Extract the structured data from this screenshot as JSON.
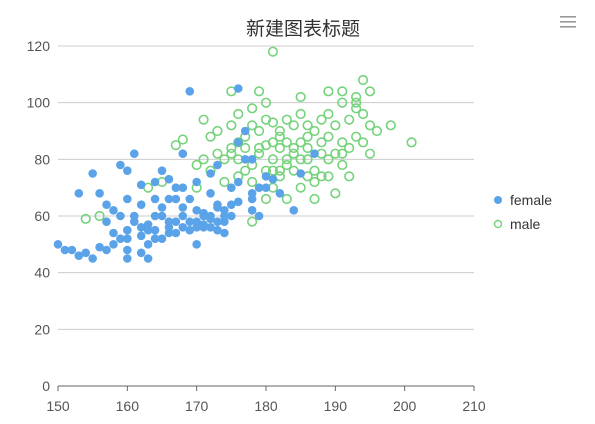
{
  "colors": {
    "female": "#5ba3e8",
    "male": "#76d37c",
    "grid": "#cccccc",
    "axis": "#666666",
    "menu_icon": "#999999"
  },
  "toolbar": {
    "menu_icon": "hamburger-menu-icon"
  },
  "chart_data": {
    "type": "scatter",
    "title": "新建图表标题",
    "xlabel": "",
    "ylabel": "",
    "xlim": [
      150,
      210
    ],
    "ylim": [
      0,
      120
    ],
    "x_ticks": [
      150,
      160,
      170,
      180,
      190,
      200,
      210
    ],
    "y_ticks": [
      0,
      20,
      40,
      60,
      80,
      100,
      120
    ],
    "grid": "horizontal",
    "legend_position": "right",
    "series": [
      {
        "name": "female",
        "marker": "filled-circle",
        "points": [
          [
            150,
            50
          ],
          [
            151,
            48
          ],
          [
            152,
            48
          ],
          [
            153,
            46
          ],
          [
            154,
            47
          ],
          [
            155,
            45
          ],
          [
            156,
            49
          ],
          [
            157,
            48
          ],
          [
            153,
            68
          ],
          [
            155,
            75
          ],
          [
            156,
            68
          ],
          [
            157,
            58
          ],
          [
            158,
            62
          ],
          [
            159,
            78
          ],
          [
            160,
            76
          ],
          [
            160,
            55
          ],
          [
            159,
            52
          ],
          [
            160,
            48
          ],
          [
            161,
            58
          ],
          [
            161,
            82
          ],
          [
            162,
            71
          ],
          [
            162,
            47
          ],
          [
            163,
            55
          ],
          [
            163,
            45
          ],
          [
            164,
            52
          ],
          [
            164,
            66
          ],
          [
            165,
            60
          ],
          [
            165,
            76
          ],
          [
            166,
            56
          ],
          [
            166,
            73
          ],
          [
            167,
            70
          ],
          [
            167,
            58
          ],
          [
            168,
            82
          ],
          [
            168,
            60
          ],
          [
            169,
            104
          ],
          [
            169,
            66
          ],
          [
            170,
            72
          ],
          [
            170,
            62
          ],
          [
            171,
            56
          ],
          [
            171,
            61
          ],
          [
            172,
            59
          ],
          [
            172,
            68
          ],
          [
            173,
            64
          ],
          [
            173,
            78
          ],
          [
            174,
            60
          ],
          [
            174,
            54
          ],
          [
            175,
            70
          ],
          [
            175,
            64
          ],
          [
            176,
            72
          ],
          [
            176,
            86
          ],
          [
            177,
            80
          ],
          [
            177,
            90
          ],
          [
            178,
            66
          ],
          [
            178,
            62
          ],
          [
            179,
            60
          ],
          [
            180,
            70
          ],
          [
            180,
            74
          ],
          [
            181,
            73
          ],
          [
            182,
            68
          ],
          [
            184,
            62
          ],
          [
            185,
            75
          ],
          [
            187,
            82
          ],
          [
            157,
            64
          ],
          [
            158,
            54
          ],
          [
            159,
            60
          ],
          [
            160,
            66
          ],
          [
            161,
            60
          ],
          [
            162,
            56
          ],
          [
            163,
            57
          ],
          [
            164,
            60
          ],
          [
            165,
            63
          ],
          [
            166,
            58
          ],
          [
            167,
            66
          ],
          [
            168,
            63
          ],
          [
            169,
            58
          ],
          [
            170,
            56
          ],
          [
            171,
            60
          ],
          [
            172,
            56
          ],
          [
            173,
            55
          ],
          [
            174,
            58
          ],
          [
            158,
            50
          ],
          [
            160,
            52
          ],
          [
            162,
            53
          ],
          [
            164,
            55
          ],
          [
            166,
            54
          ],
          [
            168,
            56
          ],
          [
            170,
            58
          ],
          [
            172,
            60
          ],
          [
            174,
            62
          ],
          [
            176,
            65
          ],
          [
            178,
            68
          ],
          [
            160,
            45
          ],
          [
            163,
            50
          ],
          [
            165,
            52
          ],
          [
            167,
            54
          ],
          [
            169,
            55
          ],
          [
            171,
            57
          ],
          [
            173,
            58
          ],
          [
            175,
            60
          ],
          [
            170,
            50
          ],
          [
            168,
            70
          ],
          [
            166,
            66
          ],
          [
            176,
            105
          ],
          [
            173,
            63
          ],
          [
            172,
            75
          ],
          [
            178,
            80
          ],
          [
            162,
            64
          ],
          [
            164,
            72
          ],
          [
            179,
            70
          ]
        ]
      },
      {
        "name": "male",
        "marker": "hollow-circle",
        "points": [
          [
            154,
            59
          ],
          [
            156,
            60
          ],
          [
            163,
            70
          ],
          [
            165,
            72
          ],
          [
            167,
            85
          ],
          [
            168,
            87
          ],
          [
            170,
            78
          ],
          [
            171,
            80
          ],
          [
            172,
            76
          ],
          [
            173,
            82
          ],
          [
            174,
            80
          ],
          [
            175,
            92
          ],
          [
            175,
            82
          ],
          [
            176,
            96
          ],
          [
            176,
            86
          ],
          [
            177,
            84
          ],
          [
            177,
            88
          ],
          [
            178,
            72
          ],
          [
            178,
            78
          ],
          [
            178,
            98
          ],
          [
            179,
            104
          ],
          [
            179,
            82
          ],
          [
            180,
            85
          ],
          [
            180,
            76
          ],
          [
            180,
            94
          ],
          [
            181,
            80
          ],
          [
            181,
            93
          ],
          [
            181,
            70
          ],
          [
            182,
            84
          ],
          [
            182,
            90
          ],
          [
            182,
            74
          ],
          [
            183,
            86
          ],
          [
            183,
            78
          ],
          [
            184,
            82
          ],
          [
            184,
            92
          ],
          [
            185,
            80
          ],
          [
            185,
            70
          ],
          [
            185,
            86
          ],
          [
            186,
            74
          ],
          [
            186,
            88
          ],
          [
            186,
            80
          ],
          [
            187,
            90
          ],
          [
            187,
            76
          ],
          [
            187,
            66
          ],
          [
            188,
            94
          ],
          [
            188,
            86
          ],
          [
            188,
            74
          ],
          [
            189,
            80
          ],
          [
            189,
            96
          ],
          [
            189,
            88
          ],
          [
            190,
            82
          ],
          [
            190,
            92
          ],
          [
            190,
            68
          ],
          [
            191,
            86
          ],
          [
            191,
            100
          ],
          [
            191,
            78
          ],
          [
            192,
            94
          ],
          [
            192,
            84
          ],
          [
            192,
            74
          ],
          [
            193,
            98
          ],
          [
            193,
            88
          ],
          [
            193,
            102
          ],
          [
            194,
            108
          ],
          [
            194,
            96
          ],
          [
            194,
            86
          ],
          [
            195,
            92
          ],
          [
            195,
            82
          ],
          [
            196,
            90
          ],
          [
            198,
            92
          ],
          [
            201,
            86
          ],
          [
            181,
            118
          ],
          [
            189,
            104
          ],
          [
            191,
            82
          ],
          [
            183,
            66
          ],
          [
            180,
            100
          ],
          [
            182,
            88
          ],
          [
            184,
            84
          ],
          [
            186,
            92
          ],
          [
            188,
            82
          ],
          [
            176,
            80
          ],
          [
            174,
            72
          ],
          [
            172,
            88
          ],
          [
            170,
            70
          ],
          [
            175,
            84
          ],
          [
            177,
            76
          ],
          [
            179,
            90
          ],
          [
            181,
            86
          ],
          [
            183,
            94
          ],
          [
            185,
            96
          ],
          [
            187,
            72
          ],
          [
            189,
            74
          ],
          [
            185,
            102
          ],
          [
            178,
            92
          ],
          [
            176,
            74
          ],
          [
            180,
            66
          ],
          [
            182,
            76
          ],
          [
            184,
            76
          ],
          [
            186,
            84
          ],
          [
            179,
            84
          ],
          [
            181,
            76
          ],
          [
            183,
            80
          ],
          [
            171,
            94
          ],
          [
            173,
            90
          ],
          [
            178,
            58
          ],
          [
            175,
            104
          ],
          [
            193,
            100
          ],
          [
            191,
            104
          ],
          [
            195,
            104
          ]
        ]
      }
    ]
  }
}
